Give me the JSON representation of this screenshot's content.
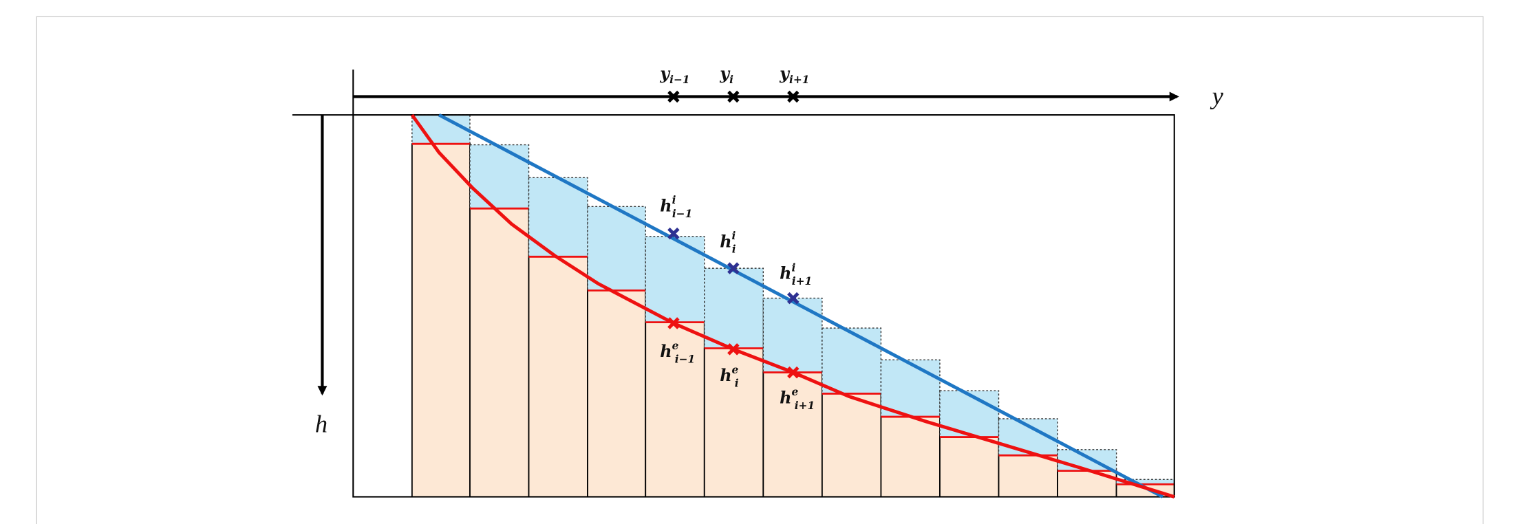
{
  "axes": {
    "y": "y",
    "h": "h"
  },
  "labels": [
    {
      "base": "y",
      "sub": "i−1"
    },
    {
      "base": "y",
      "sub": "i"
    },
    {
      "base": "y",
      "sub": "i+1"
    },
    {
      "base": "h",
      "sup": "i",
      "sub": "i−1"
    },
    {
      "base": "h",
      "sup": "i",
      "sub": "i"
    },
    {
      "base": "h",
      "sup": "i",
      "sub": "i+1"
    },
    {
      "base": "h",
      "sup": "e",
      "sub": "i−1"
    },
    {
      "base": "h",
      "sup": "e",
      "sub": "i"
    },
    {
      "base": "h",
      "sup": "e",
      "sub": "i+1"
    }
  ]
}
